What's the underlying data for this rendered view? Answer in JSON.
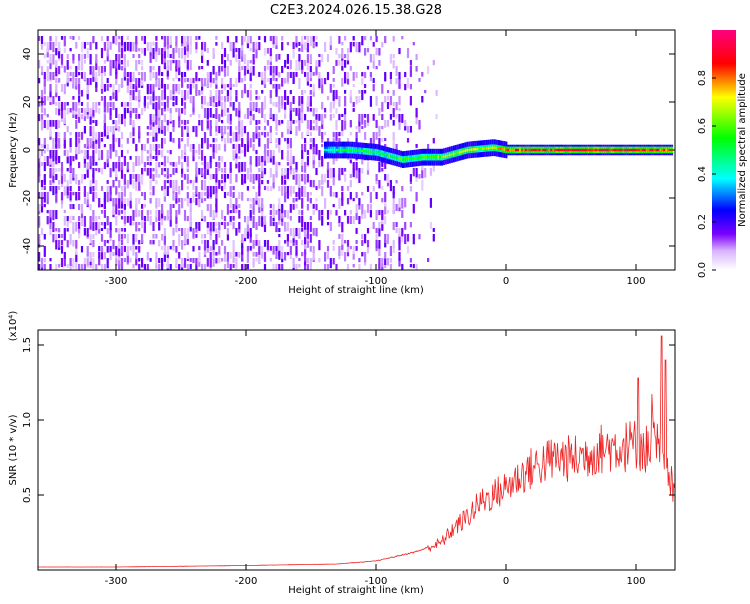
{
  "title": "C2E3.2024.026.15.38.G28",
  "chart_data": [
    {
      "type": "heatmap",
      "title": "C2E3.2024.026.15.38.G28",
      "xlabel": "Height of straight line (km)",
      "ylabel": "Frequency (Hz)",
      "xlim": [
        -360,
        130
      ],
      "ylim": [
        -50,
        50
      ],
      "x_ticks": [
        -300,
        -200,
        -100,
        0,
        100
      ],
      "y_ticks": [
        -40,
        -20,
        0,
        20,
        40
      ],
      "colorbar": {
        "label": "Normalized spectral amplitude",
        "range": [
          0,
          1
        ],
        "ticks": [
          0.0,
          0.2,
          0.4,
          0.6,
          0.8
        ],
        "colormap": [
          "#ffffff",
          "#e6c8ff",
          "#7a00ff",
          "#0000ff",
          "#00ffff",
          "#00ff00",
          "#ffff00",
          "#ff0000",
          "#ff0080"
        ]
      },
      "signal_track": [
        {
          "x": -140,
          "f": 0.0,
          "a": 0.5
        },
        {
          "x": -120,
          "f": 0.0,
          "a": 0.6
        },
        {
          "x": -100,
          "f": -1.0,
          "a": 0.6
        },
        {
          "x": -80,
          "f": -4.0,
          "a": 0.65
        },
        {
          "x": -65,
          "f": -3.0,
          "a": 0.65
        },
        {
          "x": -50,
          "f": -3.0,
          "a": 0.7
        },
        {
          "x": -30,
          "f": 0.0,
          "a": 0.75
        },
        {
          "x": -10,
          "f": 1.0,
          "a": 0.75
        },
        {
          "x": 0,
          "f": 0.0,
          "a": 0.9
        },
        {
          "x": 50,
          "f": 0.0,
          "a": 0.95
        },
        {
          "x": 100,
          "f": 0.0,
          "a": 0.95
        },
        {
          "x": 128,
          "f": 0.0,
          "a": 0.9
        }
      ],
      "noise_region_x": [
        -360,
        -90
      ]
    },
    {
      "type": "line",
      "xlabel": "Height of straight line (km)",
      "ylabel": "SNR (10 * v/v)",
      "y_multiplier": "(x10⁴)",
      "xlim": [
        -360,
        130
      ],
      "ylim": [
        0,
        1.6
      ],
      "x_ticks": [
        -300,
        -200,
        -100,
        0,
        100
      ],
      "y_ticks": [
        0.5,
        1.0,
        1.5
      ],
      "color": "#ee2222",
      "series": [
        {
          "x": [
            -360,
            -300,
            -200,
            -130,
            -100,
            -70,
            -60,
            -50,
            -40,
            -30,
            -20,
            -10,
            0,
            10,
            20,
            30,
            40,
            50,
            60,
            70,
            80,
            90,
            100,
            110,
            115,
            120,
            125,
            130
          ],
          "values": [
            0.02,
            0.02,
            0.03,
            0.04,
            0.06,
            0.12,
            0.15,
            0.18,
            0.28,
            0.35,
            0.45,
            0.5,
            0.55,
            0.62,
            0.68,
            0.72,
            0.75,
            0.74,
            0.76,
            0.8,
            0.82,
            0.82,
            0.84,
            0.8,
            0.85,
            0.75,
            0.6,
            0.55
          ]
        }
      ],
      "peak_spikes": [
        {
          "x": 102,
          "y": 1.28
        },
        {
          "x": 120,
          "y": 1.56
        },
        {
          "x": 123,
          "y": 1.4
        }
      ]
    }
  ]
}
